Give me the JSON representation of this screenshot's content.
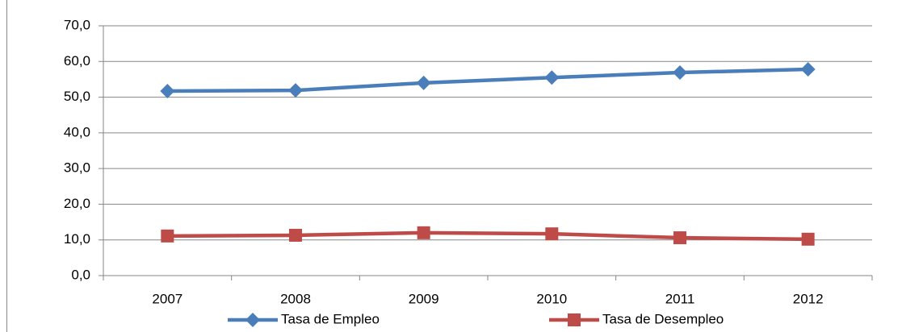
{
  "chart_data": {
    "type": "line",
    "categories": [
      "2007",
      "2008",
      "2009",
      "2010",
      "2011",
      "2012"
    ],
    "series": [
      {
        "name": "Tasa de Empleo",
        "color": "#4a7ebb",
        "marker": "diamond",
        "values": [
          51.7,
          51.9,
          54.0,
          55.5,
          56.9,
          57.8
        ]
      },
      {
        "name": "Tasa de Desempleo",
        "color": "#be4b48",
        "marker": "square",
        "values": [
          11.1,
          11.3,
          12.0,
          11.7,
          10.6,
          10.2
        ]
      }
    ],
    "ylim": [
      0,
      70
    ],
    "yticks": [
      {
        "value": 0,
        "label": "0,0"
      },
      {
        "value": 10,
        "label": "10,0"
      },
      {
        "value": 20,
        "label": "20,0"
      },
      {
        "value": 30,
        "label": "30,0"
      },
      {
        "value": 40,
        "label": "40,0"
      },
      {
        "value": 50,
        "label": "50,0"
      },
      {
        "value": 60,
        "label": "60,0"
      },
      {
        "value": 70,
        "label": "70,0"
      }
    ],
    "grid": true,
    "legend": "bottom"
  }
}
